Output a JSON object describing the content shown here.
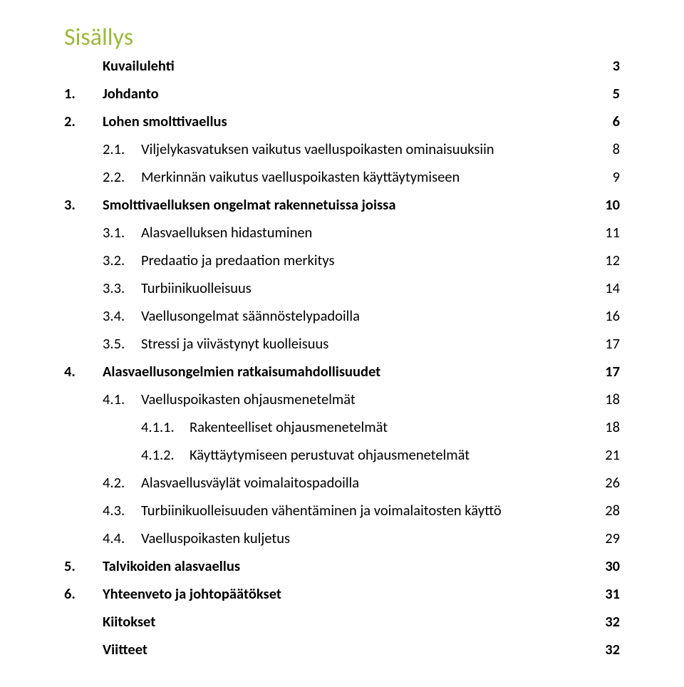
{
  "title": "Sisällys",
  "entries": [
    {
      "level": 0,
      "num": "",
      "label": "Kuvailulehti",
      "page": "3",
      "bold": true
    },
    {
      "level": 0,
      "num": "1.",
      "label": "Johdanto",
      "page": "5",
      "bold": true
    },
    {
      "level": 0,
      "num": "2.",
      "label": "Lohen smolttivaellus",
      "page": "6",
      "bold": true
    },
    {
      "level": 1,
      "num": "2.1.",
      "label": "Viljelykasvatuksen vaikutus vaelluspoikasten ominaisuuksiin",
      "page": "8",
      "bold": false
    },
    {
      "level": 1,
      "num": "2.2.",
      "label": "Merkinnän vaikutus vaelluspoikasten käyttäytymiseen",
      "page": "9",
      "bold": false
    },
    {
      "level": 0,
      "num": "3.",
      "label": "Smolttivaelluksen ongelmat rakennetuissa joissa",
      "page": "10",
      "bold": true
    },
    {
      "level": 1,
      "num": "3.1.",
      "label": "Alasvaelluksen hidastuminen",
      "page": "11",
      "bold": false
    },
    {
      "level": 1,
      "num": "3.2.",
      "label": "Predaatio ja predaation merkitys",
      "page": "12",
      "bold": false
    },
    {
      "level": 1,
      "num": "3.3.",
      "label": "Turbiinikuolleisuus",
      "page": "14",
      "bold": false
    },
    {
      "level": 1,
      "num": "3.4.",
      "label": "Vaellusongelmat säännöstelypadoilla",
      "page": "16",
      "bold": false
    },
    {
      "level": 1,
      "num": "3.5.",
      "label": "Stressi ja viivästynyt kuolleisuus",
      "page": "17",
      "bold": false
    },
    {
      "level": 0,
      "num": "4.",
      "label": "Alasvaellusongelmien ratkaisumahdollisuudet",
      "page": "17",
      "bold": true
    },
    {
      "level": 1,
      "num": "4.1.",
      "label": "Vaelluspoikasten ohjausmenetelmät",
      "page": "18",
      "bold": false
    },
    {
      "level": 2,
      "num": "4.1.1.",
      "label": "Rakenteelliset ohjausmenetelmät",
      "page": "18",
      "bold": false
    },
    {
      "level": 2,
      "num": "4.1.2.",
      "label": "Käyttäytymiseen perustuvat ohjausmenetelmät",
      "page": "21",
      "bold": false
    },
    {
      "level": 1,
      "num": "4.2.",
      "label": "Alasvaellusväylät voimalaitospadoilla",
      "page": "26",
      "bold": false
    },
    {
      "level": 1,
      "num": "4.3.",
      "label": "Turbiinikuolleisuuden vähentäminen ja voimalaitosten käyttö",
      "page": "28",
      "bold": false
    },
    {
      "level": 1,
      "num": "4.4.",
      "label": "Vaelluspoikasten kuljetus",
      "page": "29",
      "bold": false
    },
    {
      "level": 0,
      "num": "5.",
      "label": "Talvikoiden alasvaellus",
      "page": "30",
      "bold": true
    },
    {
      "level": 0,
      "num": "6.",
      "label": "Yhteenveto ja johtopäätökset",
      "page": "31",
      "bold": true
    },
    {
      "level": 0,
      "num": "",
      "label": "Kiitokset",
      "page": "32",
      "bold": true
    },
    {
      "level": 0,
      "num": "",
      "label": "Viitteet",
      "page": "32",
      "bold": true
    }
  ]
}
